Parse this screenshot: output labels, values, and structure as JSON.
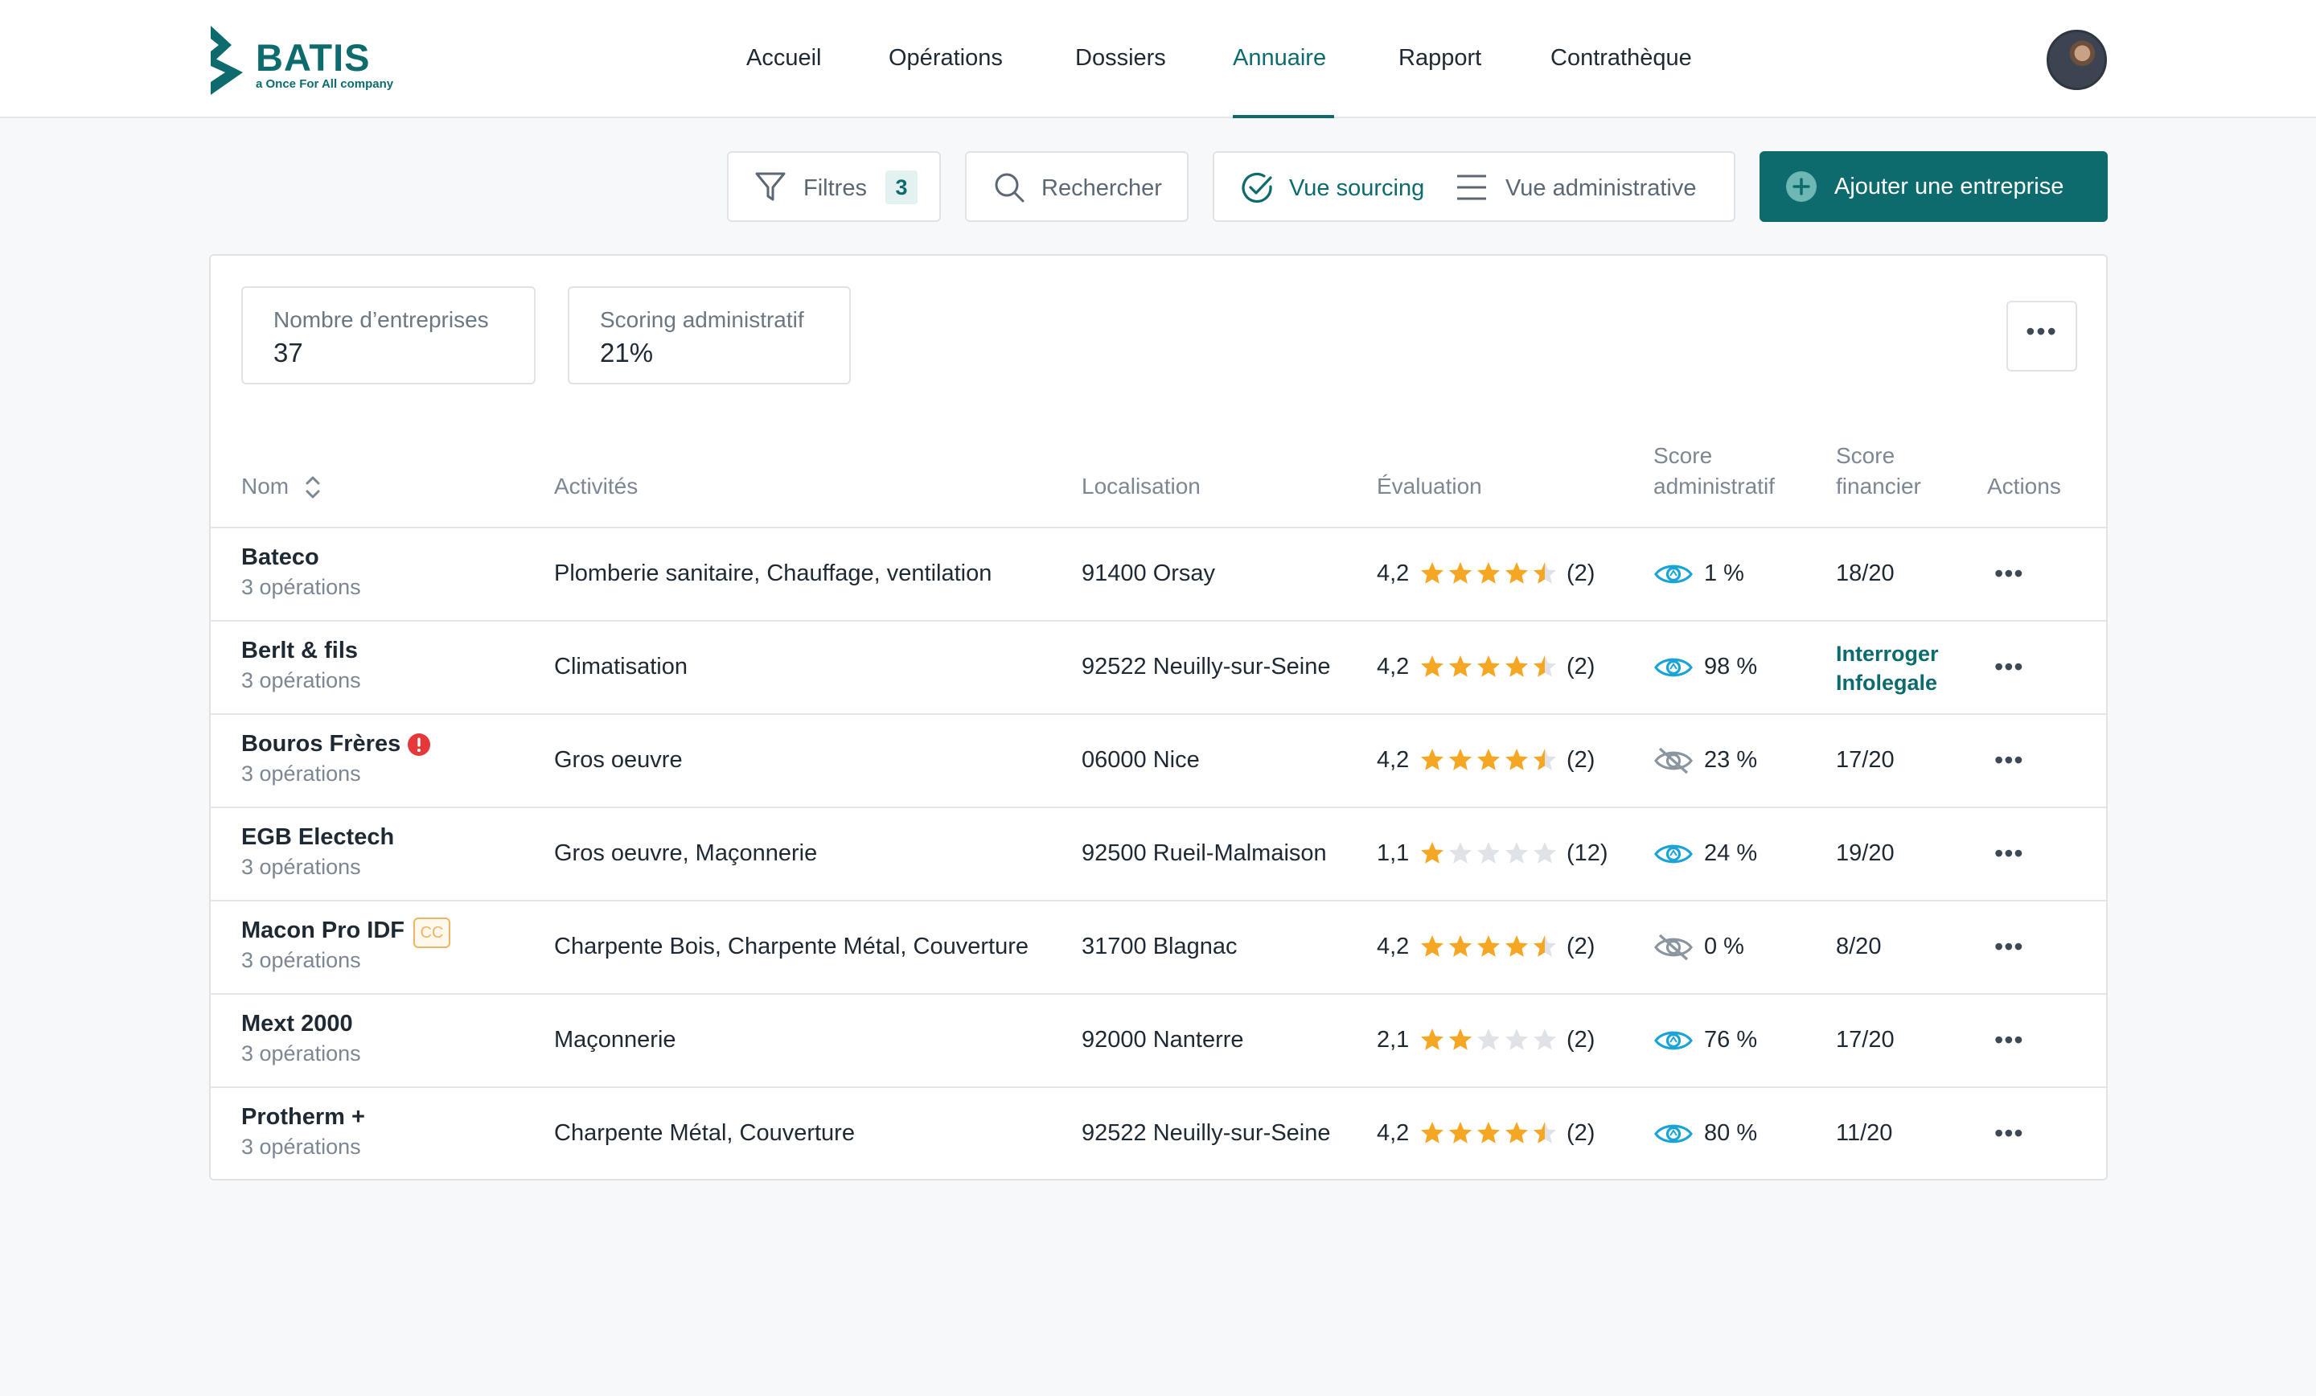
{
  "brand": {
    "name": "BATIS",
    "tagline": "a Once For All company",
    "color": "#0d6b6e"
  },
  "nav": {
    "items": [
      {
        "label": "Accueil"
      },
      {
        "label": "Opérations"
      },
      {
        "label": "Dossiers"
      },
      {
        "label": "Annuaire",
        "active": true
      },
      {
        "label": "Rapport"
      },
      {
        "label": "Contrathèque"
      }
    ]
  },
  "toolbar": {
    "filters_label": "Filtres",
    "filters_count": "3",
    "search_label": "Rechercher",
    "view_sourcing_label": "Vue sourcing",
    "view_admin_label": "Vue administrative",
    "add_company_label": "Ajouter une entreprise"
  },
  "stats": {
    "companies_label": "Nombre d’entreprises",
    "companies_value": "37",
    "scoring_label": "Scoring administratif",
    "scoring_value": "21%"
  },
  "table": {
    "headers": {
      "name": "Nom",
      "activities": "Activités",
      "location": "Localisation",
      "rating": "Évaluation",
      "admin_score_1": "Score",
      "admin_score_2": "administratif",
      "fin_score_1": "Score",
      "fin_score_2": "financier",
      "actions": "Actions"
    },
    "rows": [
      {
        "name": "Bateco",
        "ops": "3 opérations",
        "activities": "Plomberie sanitaire, Chauffage, ventilation",
        "location": "91400 Orsay",
        "rating": "4,2",
        "stars": 4.5,
        "reviews": "(2)",
        "admin_visible": true,
        "admin_score": "1 %",
        "fin_score": "18/20"
      },
      {
        "name": "Berlt & fils",
        "ops": "3 opérations",
        "activities": "Climatisation",
        "location": "92522 Neuilly-sur-Seine",
        "rating": "4,2",
        "stars": 4.5,
        "reviews": "(2)",
        "admin_visible": true,
        "admin_score": "98 %",
        "fin_link_1": "Interroger",
        "fin_link_2": "Infolegale"
      },
      {
        "name": "Bouros Frères",
        "ops": "3 opérations",
        "activities": "Gros oeuvre",
        "location": "06000 Nice",
        "rating": "4,2",
        "stars": 4.5,
        "reviews": "(2)",
        "admin_visible": false,
        "admin_score": "23 %",
        "fin_score": "17/20",
        "alert": true
      },
      {
        "name": "EGB Electech",
        "ops": "3 opérations",
        "activities": "Gros oeuvre, Maçonnerie",
        "location": "92500 Rueil-Malmaison",
        "rating": "1,1",
        "stars": 1,
        "reviews": "(12)",
        "admin_visible": true,
        "admin_score": "24 %",
        "fin_score": "19/20"
      },
      {
        "name": "Macon Pro IDF",
        "ops": "3 opérations",
        "activities": "Charpente Bois, Charpente Métal, Couverture",
        "location": "31700 Blagnac",
        "rating": "4,2",
        "stars": 4.5,
        "reviews": "(2)",
        "admin_visible": false,
        "admin_score": "0 %",
        "fin_score": "8/20",
        "badge": "CC"
      },
      {
        "name": "Mext 2000",
        "ops": "3 opérations",
        "activities": "Maçonnerie",
        "location": "92000 Nanterre",
        "rating": "2,1",
        "stars": 2,
        "reviews": "(2)",
        "admin_visible": true,
        "admin_score": "76 %",
        "fin_score": "17/20"
      },
      {
        "name": "Protherm +",
        "ops": "3 opérations",
        "activities": "Charpente Métal, Couverture",
        "location": "92522 Neuilly-sur-Seine",
        "rating": "4,2",
        "stars": 4.5,
        "reviews": "(2)",
        "admin_visible": true,
        "admin_score": "80 %",
        "fin_score": "11/20"
      }
    ]
  },
  "colors": {
    "primary": "#0d6b6e",
    "star": "#f5a623",
    "star_empty": "#dfe3e8",
    "eye": "#1aa3d6",
    "alert": "#e5383b",
    "cc": "#f0b562"
  }
}
